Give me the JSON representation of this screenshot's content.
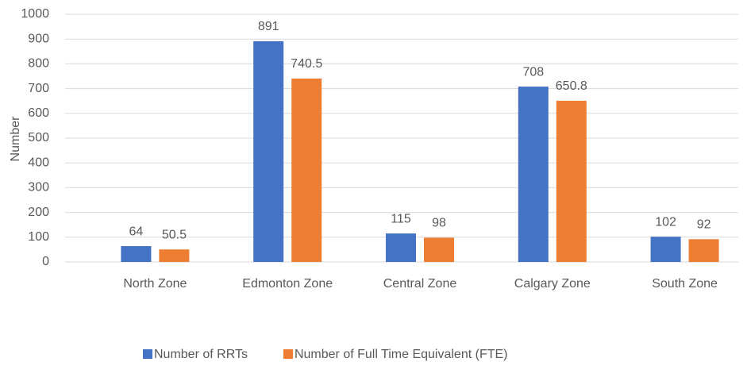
{
  "chart_data": {
    "type": "bar",
    "y_label": "Number",
    "categories": [
      "North Zone",
      "Edmonton Zone",
      "Central Zone",
      "Calgary Zone",
      "South Zone"
    ],
    "series": [
      {
        "name": "Number of RRTs",
        "color": "#4472c4",
        "values": [
          64,
          891,
          115,
          708,
          102
        ]
      },
      {
        "name": "Number of Full Time Equivalent (FTE)",
        "color": "#ed7d31",
        "values": [
          50.5,
          740.5,
          98,
          650.8,
          92
        ]
      }
    ],
    "ylim": [
      0,
      1000
    ],
    "yticks": [
      0,
      100,
      200,
      300,
      400,
      500,
      600,
      700,
      800,
      900,
      1000
    ],
    "grid": true,
    "legend": "bottom"
  }
}
